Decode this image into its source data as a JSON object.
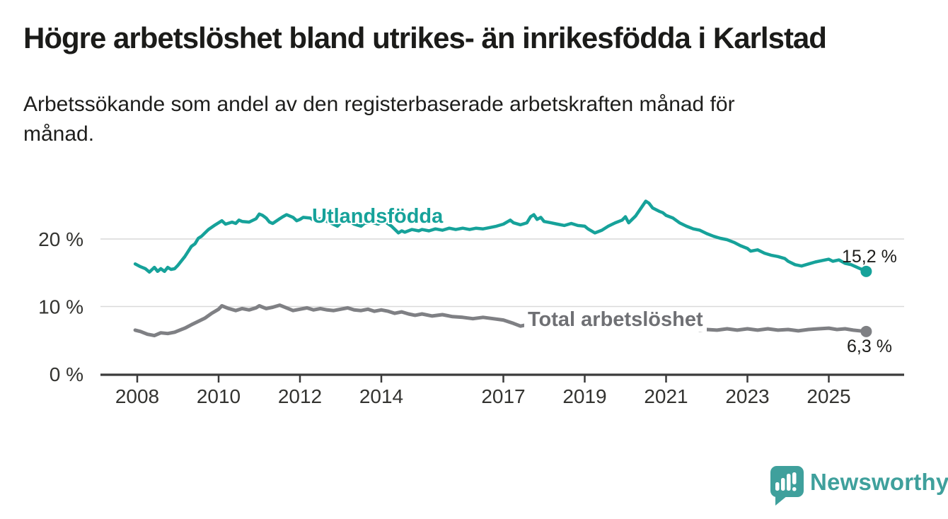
{
  "header": {
    "title": "Högre arbetslöshet bland utrikes- än inrikesfödda i Karlstad",
    "subtitle_lines": [
      "Arbetssökande som andel av den registerbaserade arbetskraften månad för",
      "månad."
    ]
  },
  "chart_data": {
    "type": "line",
    "unit": "%",
    "title": "Högre arbetslöshet bland utrikes- än inrikesfödda i Karlstad",
    "subtitle": "Arbetssökande som andel av den registerbaserade arbetskraften månad för månad.",
    "grid": "horizontal-only",
    "x_axis": {
      "tick_years": [
        2008,
        2010,
        2012,
        2014,
        2017,
        2019,
        2021,
        2023,
        2025
      ],
      "tick_labels": [
        "2008",
        "2010",
        "2012",
        "2014",
        "2017",
        "2019",
        "2021",
        "2023",
        "2025"
      ],
      "range_years": [
        2007.95,
        2026.2
      ]
    },
    "y_axis": {
      "tick_values": [
        0,
        10,
        20
      ],
      "tick_labels": [
        "0 %",
        "10 %",
        "20 %"
      ],
      "gridline_values": [
        10,
        20
      ],
      "range": [
        0,
        27
      ]
    },
    "colors": {
      "axis": "#3b3b3b",
      "gridline": "#d9d9d9",
      "tick_text": "#333330"
    },
    "series": [
      {
        "name": "Utlandsfödda",
        "slug": "utlandsfodda",
        "color": "#16a29a",
        "label_color": "#16a29a",
        "end_label": "15,2 %",
        "last_value": 15.2,
        "points": [
          [
            2007.95,
            16.3
          ],
          [
            2008.08,
            15.9
          ],
          [
            2008.2,
            15.6
          ],
          [
            2008.3,
            15.1
          ],
          [
            2008.42,
            15.8
          ],
          [
            2008.5,
            15.2
          ],
          [
            2008.58,
            15.6
          ],
          [
            2008.67,
            15.2
          ],
          [
            2008.75,
            15.8
          ],
          [
            2008.83,
            15.5
          ],
          [
            2008.92,
            15.6
          ],
          [
            2009.0,
            16.1
          ],
          [
            2009.17,
            17.4
          ],
          [
            2009.33,
            18.9
          ],
          [
            2009.42,
            19.3
          ],
          [
            2009.5,
            20.1
          ],
          [
            2009.58,
            20.4
          ],
          [
            2009.75,
            21.4
          ],
          [
            2009.92,
            22.1
          ],
          [
            2010.0,
            22.4
          ],
          [
            2010.08,
            22.7
          ],
          [
            2010.17,
            22.2
          ],
          [
            2010.33,
            22.5
          ],
          [
            2010.42,
            22.3
          ],
          [
            2010.5,
            22.8
          ],
          [
            2010.58,
            22.6
          ],
          [
            2010.75,
            22.5
          ],
          [
            2010.92,
            23.0
          ],
          [
            2011.0,
            23.7
          ],
          [
            2011.08,
            23.5
          ],
          [
            2011.17,
            23.1
          ],
          [
            2011.25,
            22.5
          ],
          [
            2011.33,
            22.3
          ],
          [
            2011.5,
            23.0
          ],
          [
            2011.58,
            23.3
          ],
          [
            2011.67,
            23.6
          ],
          [
            2011.83,
            23.2
          ],
          [
            2011.92,
            22.7
          ],
          [
            2012.0,
            22.9
          ],
          [
            2012.08,
            23.2
          ],
          [
            2012.25,
            23.1
          ],
          [
            2012.33,
            22.8
          ],
          [
            2012.5,
            23.0
          ],
          [
            2012.58,
            22.8
          ],
          [
            2012.75,
            22.4
          ],
          [
            2012.92,
            21.9
          ],
          [
            2013.0,
            22.4
          ],
          [
            2013.08,
            22.8
          ],
          [
            2013.25,
            22.5
          ],
          [
            2013.33,
            22.2
          ],
          [
            2013.5,
            21.9
          ],
          [
            2013.58,
            22.3
          ],
          [
            2013.75,
            22.5
          ],
          [
            2013.92,
            22.2
          ],
          [
            2014.0,
            22.5
          ],
          [
            2014.08,
            22.6
          ],
          [
            2014.25,
            21.9
          ],
          [
            2014.42,
            20.9
          ],
          [
            2014.5,
            21.2
          ],
          [
            2014.58,
            21.0
          ],
          [
            2014.75,
            21.4
          ],
          [
            2014.92,
            21.2
          ],
          [
            2015.0,
            21.4
          ],
          [
            2015.17,
            21.2
          ],
          [
            2015.33,
            21.5
          ],
          [
            2015.5,
            21.3
          ],
          [
            2015.67,
            21.6
          ],
          [
            2015.83,
            21.4
          ],
          [
            2016.0,
            21.6
          ],
          [
            2016.17,
            21.4
          ],
          [
            2016.33,
            21.6
          ],
          [
            2016.5,
            21.5
          ],
          [
            2016.67,
            21.7
          ],
          [
            2016.83,
            21.9
          ],
          [
            2017.0,
            22.2
          ],
          [
            2017.17,
            22.8
          ],
          [
            2017.25,
            22.4
          ],
          [
            2017.42,
            22.1
          ],
          [
            2017.58,
            22.4
          ],
          [
            2017.67,
            23.3
          ],
          [
            2017.75,
            23.6
          ],
          [
            2017.83,
            22.9
          ],
          [
            2017.92,
            23.2
          ],
          [
            2018.0,
            22.6
          ],
          [
            2018.17,
            22.4
          ],
          [
            2018.33,
            22.2
          ],
          [
            2018.5,
            22.0
          ],
          [
            2018.67,
            22.3
          ],
          [
            2018.83,
            22.0
          ],
          [
            2019.0,
            21.9
          ],
          [
            2019.08,
            21.5
          ],
          [
            2019.25,
            20.9
          ],
          [
            2019.42,
            21.3
          ],
          [
            2019.58,
            21.9
          ],
          [
            2019.75,
            22.4
          ],
          [
            2019.92,
            22.8
          ],
          [
            2020.0,
            23.3
          ],
          [
            2020.08,
            22.4
          ],
          [
            2020.25,
            23.4
          ],
          [
            2020.42,
            24.9
          ],
          [
            2020.5,
            25.6
          ],
          [
            2020.58,
            25.3
          ],
          [
            2020.67,
            24.6
          ],
          [
            2020.83,
            24.1
          ],
          [
            2020.92,
            23.9
          ],
          [
            2021.0,
            23.5
          ],
          [
            2021.17,
            23.1
          ],
          [
            2021.33,
            22.4
          ],
          [
            2021.5,
            21.9
          ],
          [
            2021.67,
            21.5
          ],
          [
            2021.83,
            21.3
          ],
          [
            2022.0,
            20.8
          ],
          [
            2022.17,
            20.4
          ],
          [
            2022.33,
            20.1
          ],
          [
            2022.5,
            19.9
          ],
          [
            2022.67,
            19.5
          ],
          [
            2022.83,
            19.0
          ],
          [
            2023.0,
            18.6
          ],
          [
            2023.08,
            18.2
          ],
          [
            2023.25,
            18.4
          ],
          [
            2023.42,
            17.9
          ],
          [
            2023.58,
            17.6
          ],
          [
            2023.75,
            17.4
          ],
          [
            2023.92,
            17.1
          ],
          [
            2024.0,
            16.7
          ],
          [
            2024.17,
            16.2
          ],
          [
            2024.33,
            16.0
          ],
          [
            2024.5,
            16.3
          ],
          [
            2024.67,
            16.6
          ],
          [
            2024.83,
            16.8
          ],
          [
            2025.0,
            17.0
          ],
          [
            2025.1,
            16.7
          ],
          [
            2025.25,
            16.9
          ],
          [
            2025.4,
            16.4
          ],
          [
            2025.55,
            16.2
          ],
          [
            2025.92,
            15.2
          ]
        ]
      },
      {
        "name": "Total arbetslöshet",
        "slug": "total-arbetsloshet",
        "color": "#7f8084",
        "label_color": "#6f7074",
        "end_label": "6,3 %",
        "last_value": 6.3,
        "points": [
          [
            2007.95,
            6.5
          ],
          [
            2008.08,
            6.3
          ],
          [
            2008.25,
            5.9
          ],
          [
            2008.42,
            5.7
          ],
          [
            2008.58,
            6.1
          ],
          [
            2008.75,
            6.0
          ],
          [
            2008.92,
            6.2
          ],
          [
            2009.0,
            6.4
          ],
          [
            2009.17,
            6.8
          ],
          [
            2009.33,
            7.3
          ],
          [
            2009.5,
            7.8
          ],
          [
            2009.67,
            8.3
          ],
          [
            2009.83,
            9.0
          ],
          [
            2010.0,
            9.6
          ],
          [
            2010.08,
            10.1
          ],
          [
            2010.25,
            9.7
          ],
          [
            2010.42,
            9.4
          ],
          [
            2010.58,
            9.7
          ],
          [
            2010.75,
            9.5
          ],
          [
            2010.92,
            9.8
          ],
          [
            2011.0,
            10.1
          ],
          [
            2011.17,
            9.7
          ],
          [
            2011.33,
            9.9
          ],
          [
            2011.5,
            10.2
          ],
          [
            2011.67,
            9.8
          ],
          [
            2011.83,
            9.4
          ],
          [
            2012.0,
            9.6
          ],
          [
            2012.17,
            9.8
          ],
          [
            2012.33,
            9.5
          ],
          [
            2012.5,
            9.7
          ],
          [
            2012.67,
            9.5
          ],
          [
            2012.83,
            9.4
          ],
          [
            2013.0,
            9.6
          ],
          [
            2013.17,
            9.8
          ],
          [
            2013.33,
            9.5
          ],
          [
            2013.5,
            9.4
          ],
          [
            2013.67,
            9.6
          ],
          [
            2013.83,
            9.3
          ],
          [
            2014.0,
            9.5
          ],
          [
            2014.17,
            9.3
          ],
          [
            2014.33,
            9.0
          ],
          [
            2014.5,
            9.2
          ],
          [
            2014.67,
            8.9
          ],
          [
            2014.83,
            8.7
          ],
          [
            2015.0,
            8.9
          ],
          [
            2015.25,
            8.6
          ],
          [
            2015.5,
            8.8
          ],
          [
            2015.75,
            8.5
          ],
          [
            2016.0,
            8.4
          ],
          [
            2016.25,
            8.2
          ],
          [
            2016.5,
            8.4
          ],
          [
            2016.75,
            8.2
          ],
          [
            2017.0,
            8.0
          ],
          [
            2017.25,
            7.5
          ],
          [
            2017.42,
            7.1
          ],
          [
            2017.58,
            7.3
          ],
          [
            2017.75,
            7.2
          ],
          [
            2018.0,
            7.1
          ],
          [
            2018.25,
            7.0
          ],
          [
            2018.5,
            7.1
          ],
          [
            2018.75,
            6.9
          ],
          [
            2019.0,
            7.0
          ],
          [
            2019.25,
            6.9
          ],
          [
            2019.5,
            7.0
          ],
          [
            2019.75,
            7.1
          ],
          [
            2020.0,
            7.2
          ],
          [
            2020.25,
            7.9
          ],
          [
            2020.5,
            8.3
          ],
          [
            2020.75,
            8.0
          ],
          [
            2021.0,
            7.6
          ],
          [
            2021.17,
            7.1
          ],
          [
            2021.33,
            6.7
          ],
          [
            2021.5,
            6.6
          ],
          [
            2021.67,
            6.7
          ],
          [
            2021.83,
            6.5
          ],
          [
            2022.0,
            6.6
          ],
          [
            2022.25,
            6.5
          ],
          [
            2022.5,
            6.7
          ],
          [
            2022.75,
            6.5
          ],
          [
            2023.0,
            6.7
          ],
          [
            2023.25,
            6.5
          ],
          [
            2023.5,
            6.7
          ],
          [
            2023.75,
            6.5
          ],
          [
            2024.0,
            6.6
          ],
          [
            2024.25,
            6.4
          ],
          [
            2024.5,
            6.6
          ],
          [
            2024.75,
            6.7
          ],
          [
            2025.0,
            6.8
          ],
          [
            2025.2,
            6.6
          ],
          [
            2025.4,
            6.7
          ],
          [
            2025.6,
            6.5
          ],
          [
            2025.92,
            6.3
          ]
        ]
      }
    ]
  },
  "footer": {
    "brand_name": "Newsworthy",
    "brand_color": "#3fa09c",
    "logo_icon": "bar-chart-speech-bubble"
  }
}
